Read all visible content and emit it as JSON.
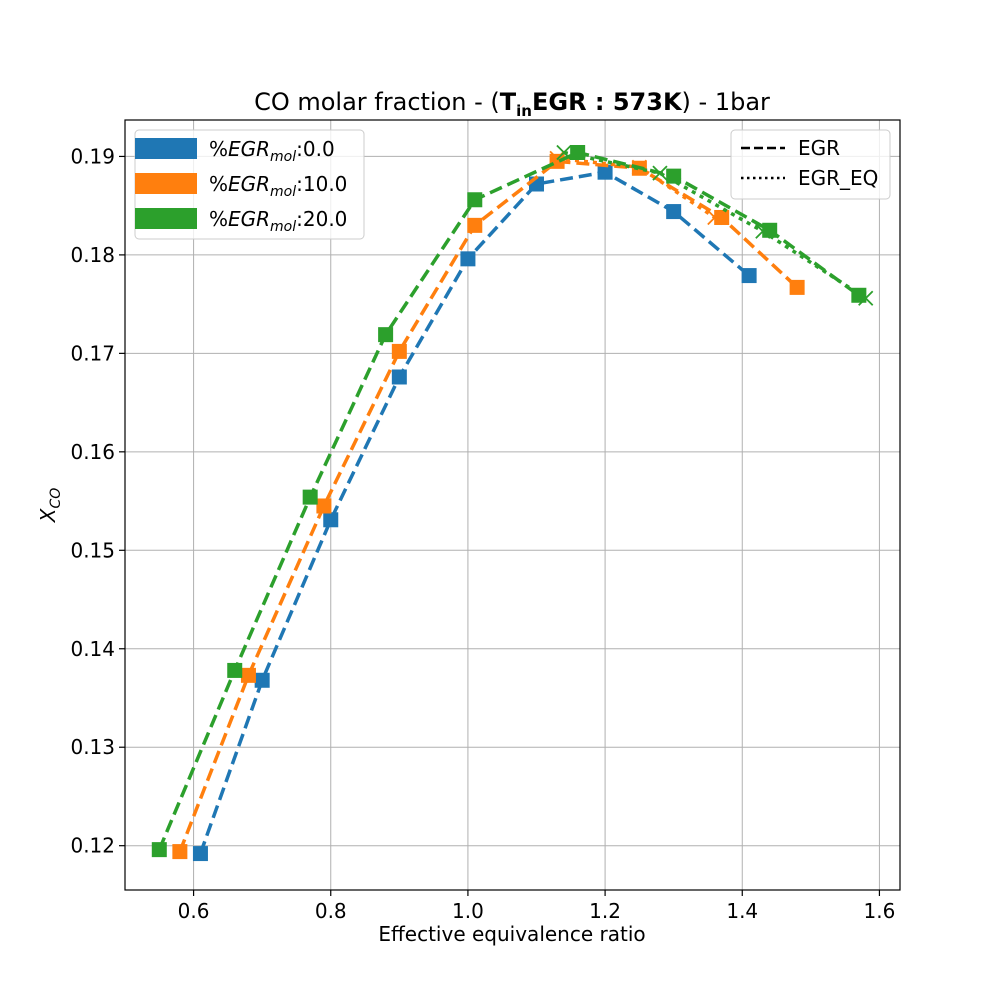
{
  "chart_data": {
    "type": "line",
    "title": {
      "prefix": "CO molar fraction - (",
      "bold_T": "T",
      "bold_sub": "in",
      "bold_rest": "EGR : 573K",
      "suffix": ") - 1bar"
    },
    "xlabel": "Effective equivalence ratio",
    "ylabel": {
      "main": "X",
      "sub": "CO"
    },
    "xlim": [
      0.5,
      1.63
    ],
    "ylim": [
      0.1155,
      0.1937
    ],
    "xticks": [
      "0.6",
      "0.8",
      "1.0",
      "1.2",
      "1.4",
      "1.6"
    ],
    "yticks": [
      "0.12",
      "0.13",
      "0.14",
      "0.15",
      "0.16",
      "0.17",
      "0.18",
      "0.19"
    ],
    "grid": true,
    "series": [
      {
        "name": "%EGR_mol:0.0",
        "label_prefix": "%",
        "label_main": "EGR",
        "label_sub": "mol",
        "label_value": ":0.0",
        "color": "#1f77b4",
        "egr": {
          "x": [
            0.61,
            0.7,
            0.8,
            0.9,
            1.0,
            1.1,
            1.2,
            1.3,
            1.41
          ],
          "y": [
            0.1192,
            0.1368,
            0.1531,
            0.1676,
            0.1796,
            0.1872,
            0.1884,
            0.1844,
            0.1779
          ]
        },
        "egr_eq": {
          "x": [],
          "y": []
        }
      },
      {
        "name": "%EGR_mol:10.0",
        "label_prefix": "%",
        "label_main": "EGR",
        "label_sub": "mol",
        "label_value": ":10.0",
        "color": "#ff7f0e",
        "egr": {
          "x": [
            0.58,
            0.68,
            0.79,
            0.9,
            1.01,
            1.13,
            1.25,
            1.37,
            1.48
          ],
          "y": [
            0.1194,
            0.1373,
            0.1545,
            0.1702,
            0.183,
            0.1895,
            0.1888,
            0.1838,
            0.1767
          ]
        },
        "egr_eq": {
          "x": [
            1.13,
            1.25,
            1.36
          ],
          "y": [
            0.1898,
            0.1889,
            0.1838
          ]
        }
      },
      {
        "name": "%EGR_mol:20.0",
        "label_prefix": "%",
        "label_main": "EGR",
        "label_sub": "mol",
        "label_value": ":20.0",
        "color": "#2ca02c",
        "egr": {
          "x": [
            0.55,
            0.66,
            0.77,
            0.88,
            1.01,
            1.16,
            1.3,
            1.44,
            1.57
          ],
          "y": [
            0.1196,
            0.1378,
            0.1554,
            0.1719,
            0.1856,
            0.1904,
            0.188,
            0.1825,
            0.1759
          ]
        },
        "egr_eq": {
          "x": [
            1.14,
            1.28,
            1.43,
            1.58
          ],
          "y": [
            0.1904,
            0.1883,
            0.1824,
            0.1756
          ]
        }
      }
    ],
    "legend_styles": [
      {
        "label": "EGR",
        "dash": "dashed"
      },
      {
        "label": "EGR_EQ",
        "dash": "dotted"
      }
    ],
    "legend_placement": [
      "upper left",
      "upper right"
    ]
  }
}
